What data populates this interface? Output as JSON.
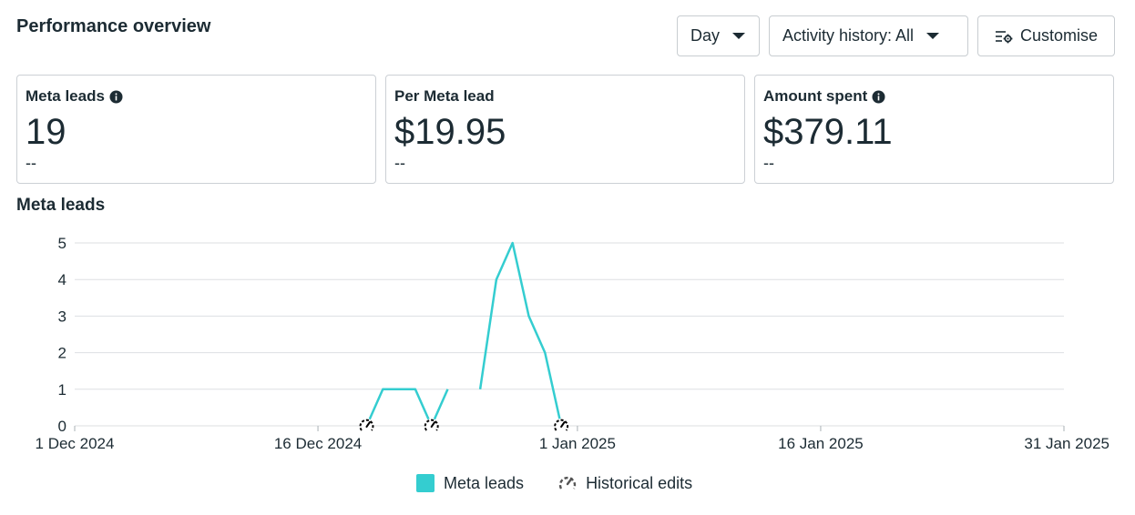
{
  "header": {
    "title": "Performance overview"
  },
  "toolbar": {
    "day_label": "Day",
    "activity_label": "Activity history: All",
    "customise_label": "Customise"
  },
  "cards": [
    {
      "label": "Meta leads",
      "value": "19",
      "sub": "--",
      "has_info": true
    },
    {
      "label": "Per Meta lead",
      "value": "$19.95",
      "sub": "--",
      "has_info": false
    },
    {
      "label": "Amount spent",
      "value": "$379.11",
      "sub": "--",
      "has_info": true
    }
  ],
  "chart_section_title": "Meta leads",
  "legend": {
    "series_label": "Meta leads",
    "edits_label": "Historical edits"
  },
  "colors": {
    "line": "#34cdd0",
    "grid": "#dddfe2",
    "text": "#1c2b33"
  },
  "chart_data": {
    "type": "line",
    "ylim": [
      0,
      5
    ],
    "yticks": [
      "0",
      "1",
      "2",
      "3",
      "4",
      "5"
    ],
    "x_tick_labels": [
      "1 Dec 2024",
      "16 Dec 2024",
      "1 Jan 2025",
      "16 Jan 2025",
      "31 Jan 2025"
    ],
    "x_tick_dates": [
      "2024-12-01",
      "2024-12-16",
      "2025-01-01",
      "2025-01-16",
      "2025-01-31"
    ],
    "series": [
      {
        "name": "Meta leads",
        "segments": [
          [
            [
              "2024-12-19",
              0
            ],
            [
              "2024-12-20",
              1
            ],
            [
              "2024-12-21",
              1
            ],
            [
              "2024-12-22",
              1
            ],
            [
              "2024-12-23",
              0
            ],
            [
              "2024-12-24",
              1
            ]
          ],
          [
            [
              "2024-12-26",
              1
            ],
            [
              "2024-12-27",
              4
            ],
            [
              "2024-12-28",
              5
            ],
            [
              "2024-12-29",
              3
            ],
            [
              "2024-12-30",
              2
            ],
            [
              "2024-12-31",
              0
            ]
          ]
        ]
      }
    ],
    "historical_edit_dates": [
      "2024-12-19",
      "2024-12-23",
      "2024-12-31"
    ]
  }
}
